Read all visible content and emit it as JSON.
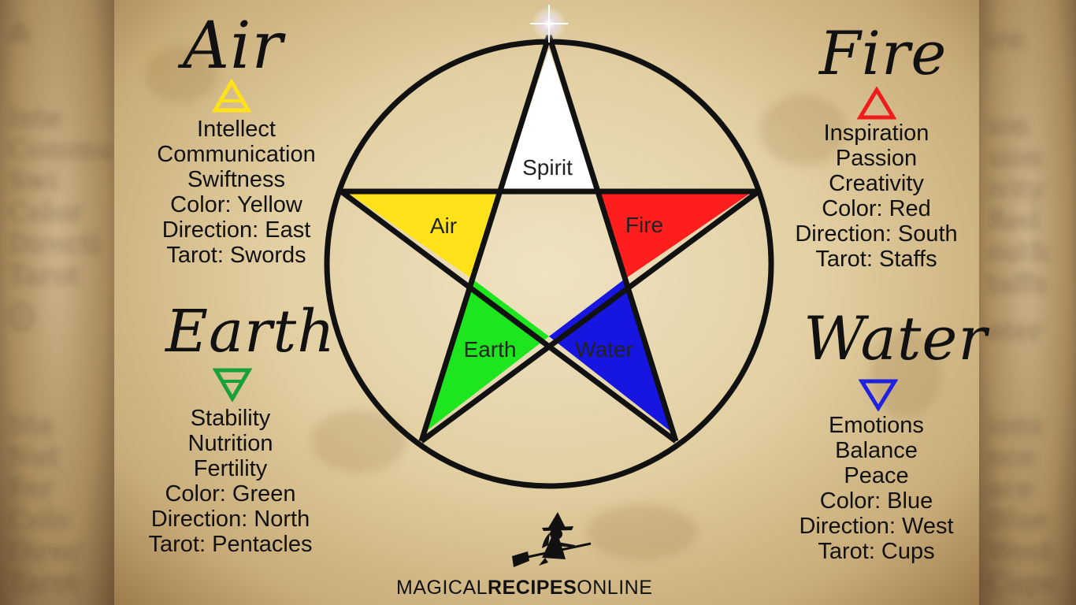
{
  "diagram": {
    "center_labels": {
      "spirit": "Spirit",
      "air": "Air",
      "fire": "Fire",
      "earth": "Earth",
      "water": "Water"
    },
    "colors": {
      "spirit": "#ffffff",
      "air": "#ffe21a",
      "fire": "#ff1e1e",
      "earth": "#1ee61e",
      "water": "#1616e0"
    }
  },
  "elements": {
    "air": {
      "title": "Air",
      "symbol_color": "#ffe21a",
      "attributes": [
        "Intellect",
        "Communication",
        "Swiftness",
        "Color: Yellow",
        "Direction: East",
        "Tarot: Swords"
      ]
    },
    "earth": {
      "title": "Earth",
      "symbol_color": "#18a03c",
      "attributes": [
        "Stability",
        "Nutrition",
        "Fertility",
        "Color: Green",
        "Direction: North",
        "Tarot: Pentacles"
      ]
    },
    "fire": {
      "title": "Fire",
      "symbol_color": "#ee1c1c",
      "attributes": [
        "Inspiration",
        "Passion",
        "Creativity",
        "Color: Red",
        "Direction: South",
        "Tarot: Staffs"
      ]
    },
    "water": {
      "title": "Water",
      "symbol_color": "#2020e0",
      "attributes": [
        "Emotions",
        "Balance",
        "Peace",
        "Color: Blue",
        "Direction: West",
        "Tarot: Cups"
      ]
    }
  },
  "brand": {
    "part1": "MAGICAL",
    "part2": "RECIPES",
    "part3": "ONLINE"
  }
}
